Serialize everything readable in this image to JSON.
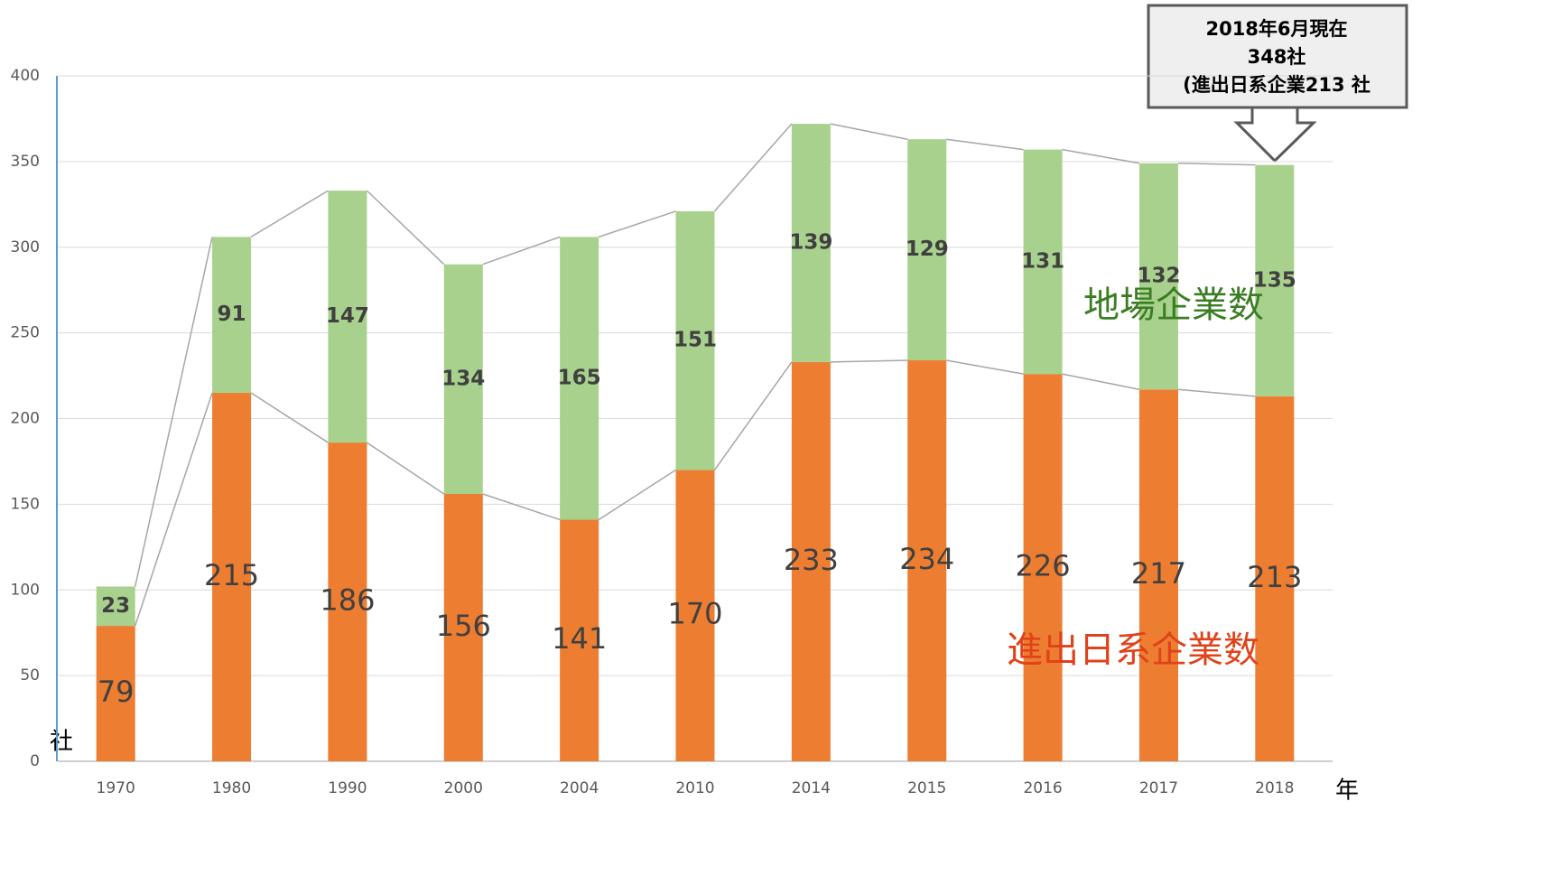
{
  "chart_data": {
    "type": "stacked_bar",
    "categories": [
      "1970",
      "1980",
      "1990",
      "2000",
      "2004",
      "2010",
      "2014",
      "2015",
      "2016",
      "2017",
      "2018"
    ],
    "series": [
      {
        "name": "進出日系企業数",
        "color": "#ed7d31",
        "label_color": "#e0421a",
        "values": [
          79,
          215,
          186,
          156,
          141,
          170,
          233,
          234,
          226,
          217,
          213
        ]
      },
      {
        "name": "地場企業数",
        "color": "#a9d18e",
        "label_color": "#3a7d22",
        "values": [
          23,
          91,
          147,
          134,
          165,
          151,
          139,
          129,
          131,
          132,
          135
        ]
      }
    ],
    "ylim": [
      0,
      400
    ],
    "yticks": [
      0,
      50,
      100,
      150,
      200,
      250,
      300,
      350,
      400
    ],
    "grid": true,
    "y_axis_label": "社",
    "x_axis_label": "年",
    "annotation": [
      "2018年6月現在",
      "348社",
      "(進出日系企業213 社"
    ]
  }
}
